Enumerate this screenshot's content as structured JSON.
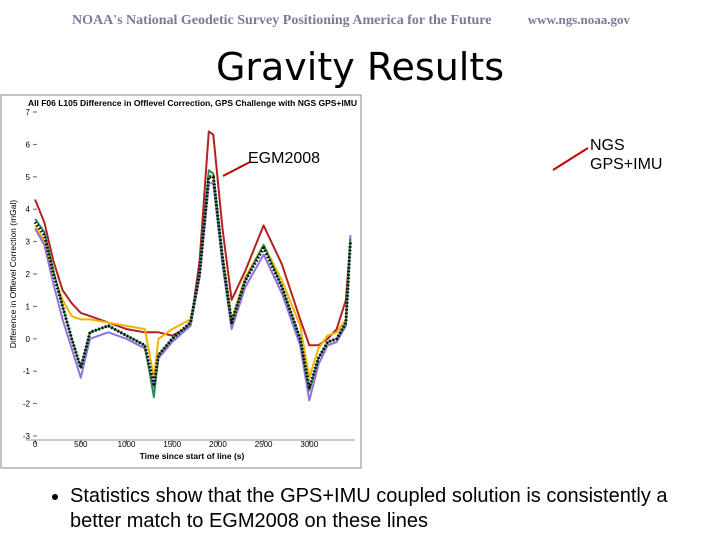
{
  "header": {
    "left": "NOAA's National Geodetic Survey Positioning America for the Future",
    "right": "www.ngs.noaa.gov"
  },
  "title": "Gravity Results",
  "chart_data": {
    "type": "line",
    "title": "All F06 L105 Difference in Offlevel Correction, GPS Challenge with NGS GPS+IMU",
    "x_label": "Time since start of line (s)",
    "y_label": "Difference in Offlevel Correction (mGal)",
    "x": [
      0,
      100,
      200,
      300,
      400,
      500,
      600,
      800,
      1000,
      1200,
      1300,
      1350,
      1500,
      1700,
      1800,
      1900,
      1950,
      2050,
      2150,
      2300,
      2500,
      2700,
      2900,
      3000,
      3100,
      3200,
      3300,
      3400,
      3450
    ],
    "series": [
      {
        "color": "#b22222",
        "values": [
          4.3,
          3.6,
          2.4,
          1.5,
          1.1,
          0.8,
          0.7,
          0.5,
          0.3,
          0.2,
          0.2,
          0.2,
          0.1,
          0.4,
          2.4,
          6.4,
          6.3,
          3.4,
          1.2,
          2.1,
          3.5,
          2.3,
          0.6,
          -0.2,
          -0.2,
          0.0,
          0.3,
          1.2,
          3.0
        ]
      },
      {
        "color": "#f0b400",
        "values": [
          3.5,
          3.0,
          2.0,
          1.2,
          0.7,
          0.6,
          0.6,
          0.5,
          0.4,
          0.3,
          -1.2,
          0.0,
          0.3,
          0.6,
          2.0,
          5.0,
          5.0,
          2.6,
          0.6,
          1.9,
          2.9,
          1.8,
          0.4,
          -1.2,
          -0.3,
          0.1,
          0.2,
          0.6,
          3.0
        ]
      },
      {
        "color": "#9370db",
        "values": [
          3.4,
          2.9,
          1.7,
          0.6,
          -0.3,
          -1.2,
          0.0,
          0.2,
          0.0,
          -0.3,
          -1.5,
          -0.6,
          -0.1,
          0.4,
          1.9,
          4.8,
          4.8,
          2.3,
          0.3,
          1.6,
          2.6,
          1.4,
          -0.2,
          -1.9,
          -0.8,
          -0.2,
          -0.1,
          0.4,
          3.2
        ]
      },
      {
        "color": "#2e8b57",
        "values": [
          3.7,
          3.3,
          2.1,
          1.0,
          0.0,
          -0.9,
          0.2,
          0.4,
          0.1,
          -0.2,
          -1.8,
          -0.5,
          0.0,
          0.5,
          2.1,
          5.2,
          5.1,
          2.5,
          0.5,
          1.8,
          2.9,
          1.6,
          0.0,
          -1.6,
          -0.6,
          -0.1,
          0.0,
          0.5,
          3.1
        ]
      },
      {
        "color": "#000000",
        "style": "dotted",
        "values": [
          3.6,
          3.2,
          2.0,
          1.0,
          0.0,
          -0.9,
          0.2,
          0.4,
          0.1,
          -0.2,
          -1.4,
          -0.5,
          0.0,
          0.5,
          2.0,
          5.0,
          5.0,
          2.5,
          0.5,
          1.8,
          2.8,
          1.6,
          0.0,
          -1.5,
          -0.6,
          -0.1,
          0.0,
          0.5,
          3.0
        ]
      }
    ],
    "xlim": [
      -100,
      3500
    ],
    "xticks": [
      0,
      500,
      1000,
      1500,
      2000,
      2500,
      3000
    ],
    "ylim": [
      -3,
      7
    ],
    "yticks": [
      -3,
      -2,
      -1,
      0,
      1,
      2,
      3,
      4,
      5,
      6,
      7
    ]
  },
  "annotations": [
    {
      "text": "EGM2008"
    },
    {
      "lines": [
        "NGS",
        "GPS+IMU"
      ]
    }
  ],
  "bullet": "Statistics show that the GPS+IMU coupled solution is consistently a better match to EGM2008 on these lines"
}
